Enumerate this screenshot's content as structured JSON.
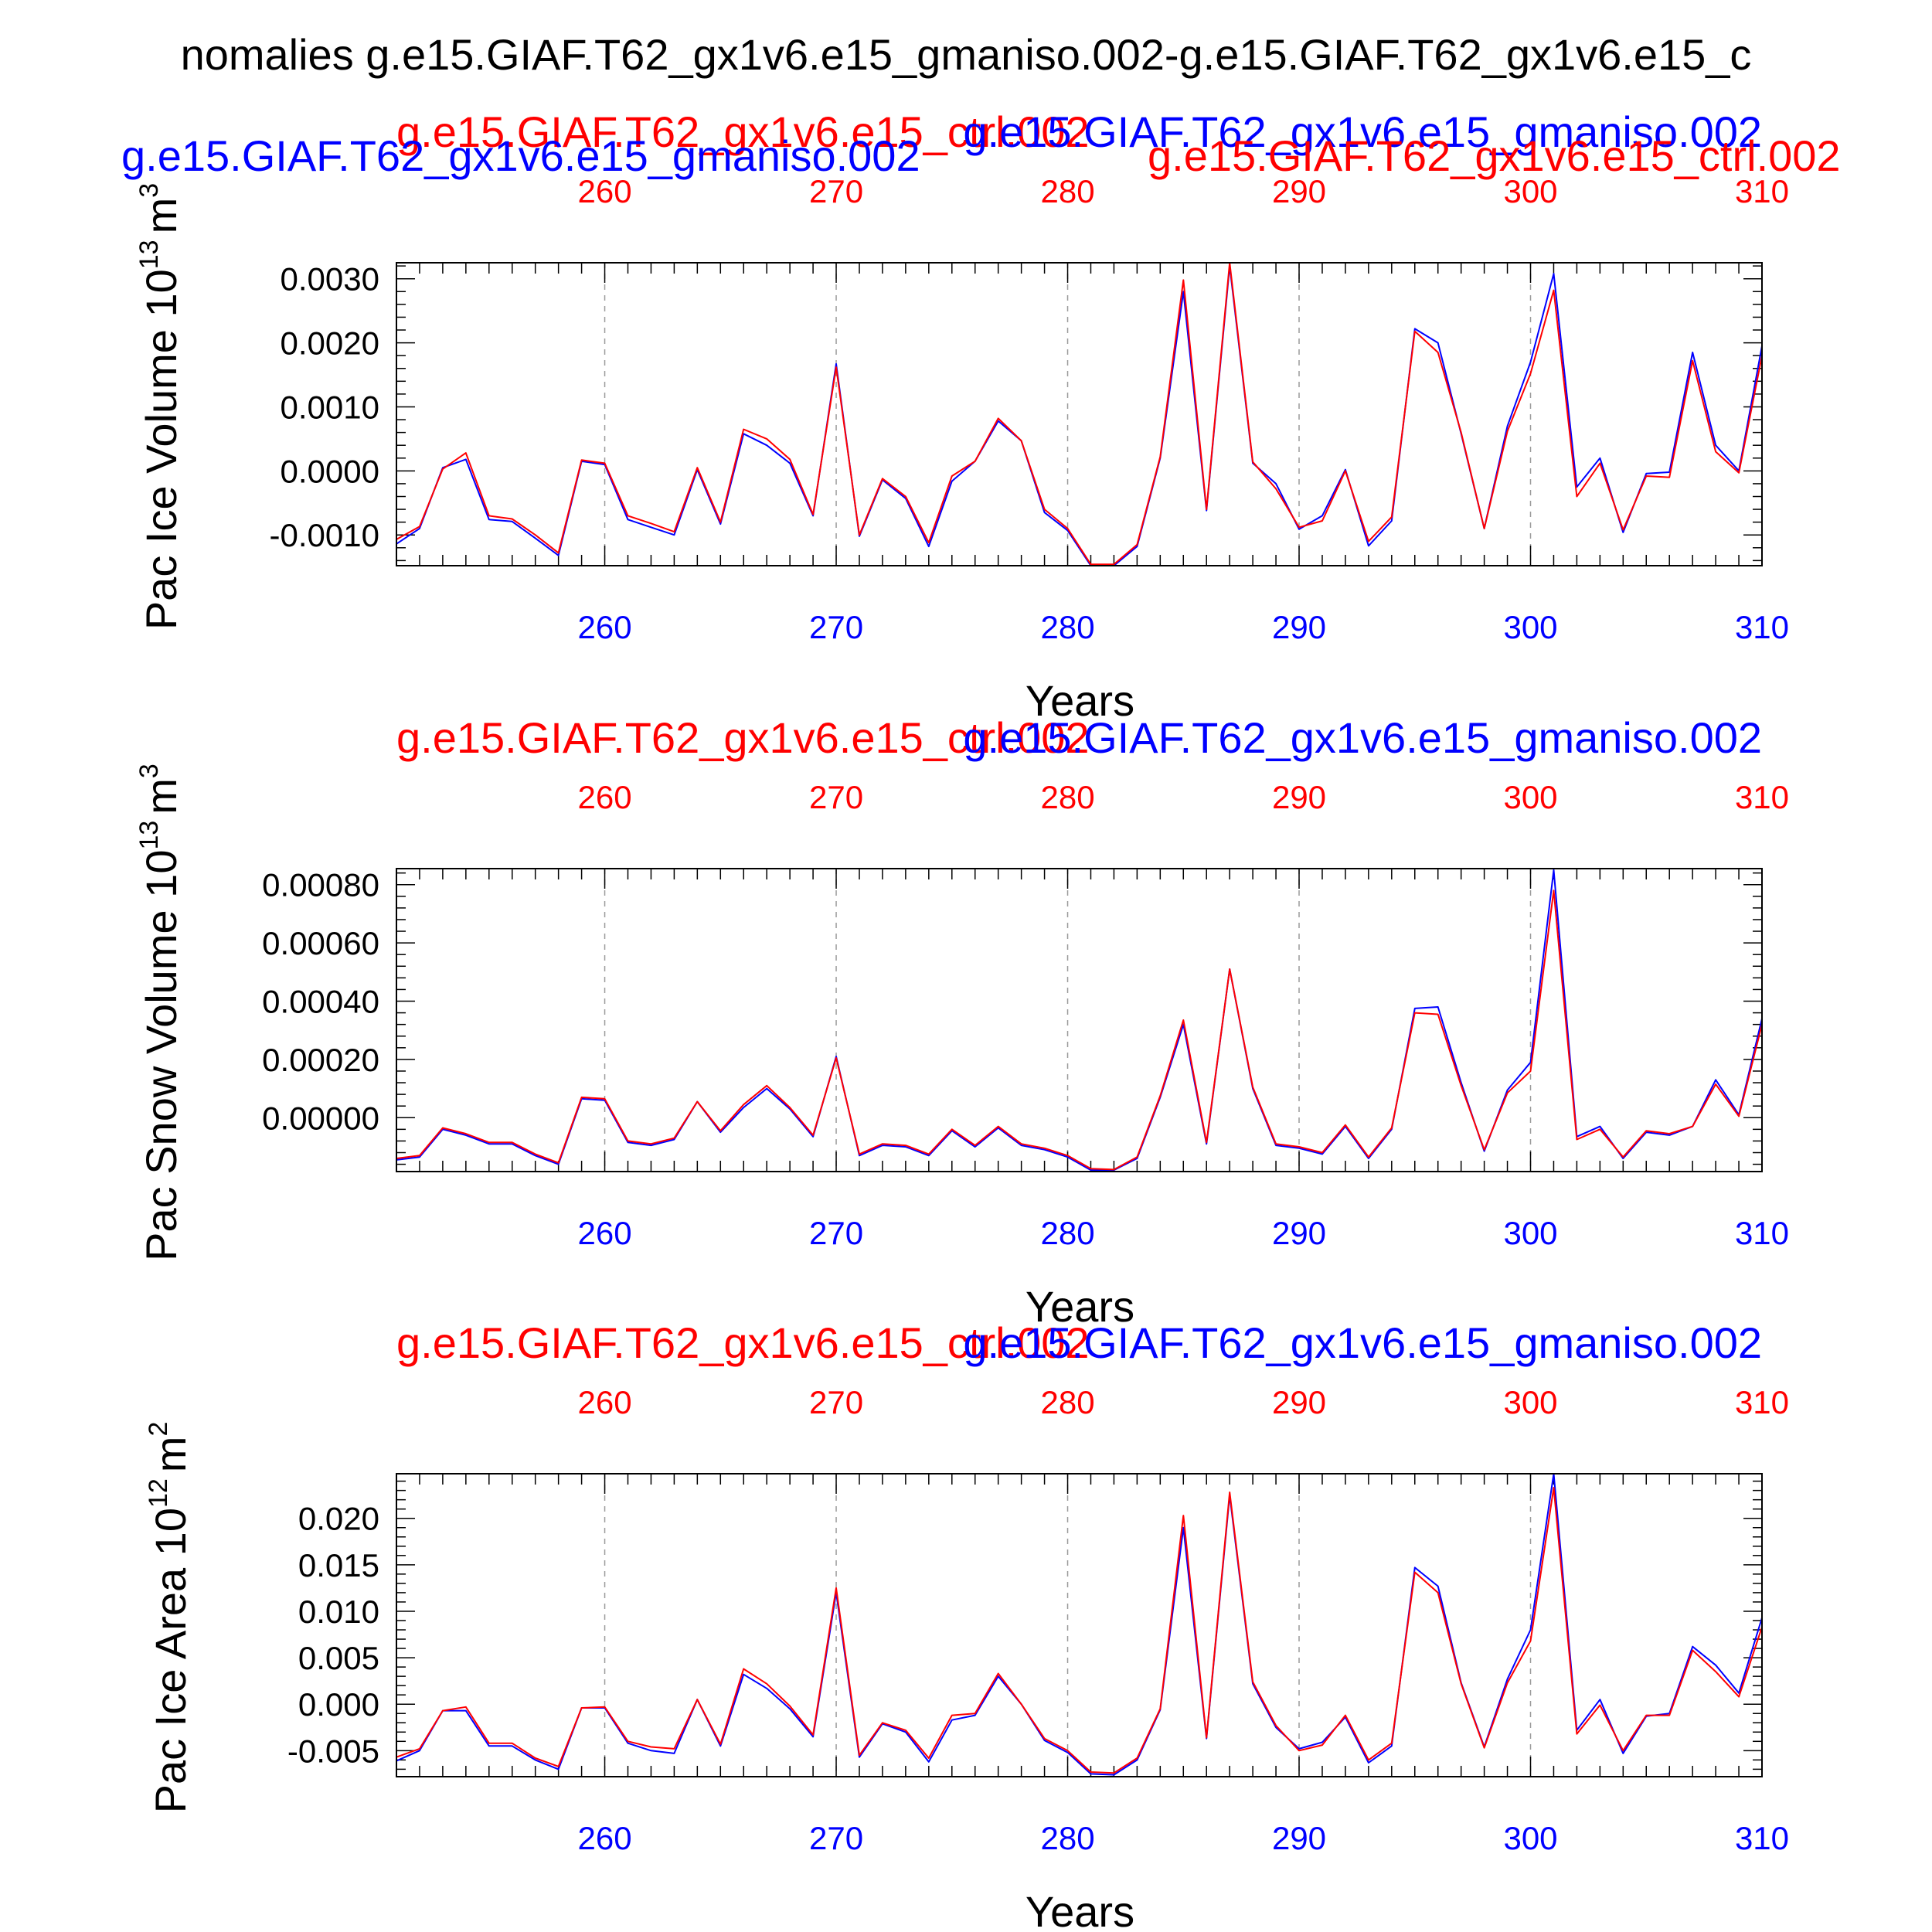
{
  "figure_title": "nomalies g.e15.GIAF.T62_gx1v6.e15_gmaniso.002-g.e15.GIAF.T62_gx1v6.e15_c",
  "colors": {
    "blue_series": "#0000ff",
    "red_series": "#ff0000",
    "axis": "#000000",
    "grid": "#9a9a9a"
  },
  "chart_data": [
    {
      "type": "line",
      "name": "ice-volume",
      "ylabel": "Pac Ice Volume 10",
      "ylabel_exp": "13",
      "ylabel_unit": "m",
      "ylabel_unit_exp": "3",
      "xlabel": "Years",
      "title_blue": "g.e15.GIAF.T62_gx1v6.e15_gmaniso.002",
      "title_red": "g.e15.GIAF.T62_gx1v6.e15_ctrl.002",
      "title_blue_top": "g.e15.GIAF.T62_gx1v6.e15_gmaniso.002",
      "title_red_top": "g.e15.GIAF.T62_gx1v6.e15_ctrl.002",
      "xlim": [
        251,
        310
      ],
      "ylim": [
        -0.00148,
        0.00325
      ],
      "xticks": [
        260,
        270,
        280,
        290,
        300,
        310
      ],
      "yticks": [
        -0.001,
        0.0,
        0.001,
        0.002,
        0.003
      ],
      "ytick_labels": [
        "-0.0010",
        "0.0000",
        "0.0010",
        "0.0020",
        "0.0030"
      ],
      "series": [
        {
          "name": "g.e15.GIAF.T62_gx1v6.e15_gmaniso.002",
          "color": "#0000ff",
          "values": [
            -0.00114,
            -0.0009,
            5e-05,
            0.00018,
            -0.00076,
            -0.00079,
            -0.00105,
            -0.00132,
            0.00015,
            0.0001,
            -0.00076,
            -0.00088,
            -0.001,
            2e-05,
            -0.00083,
            0.00058,
            0.0004,
            0.00012,
            -0.0007,
            0.00167,
            -0.00102,
            -0.00014,
            -0.00043,
            -0.00118,
            -0.00016,
            0.00015,
            0.00078,
            0.00047,
            -0.00065,
            -0.00093,
            -0.00148,
            -0.00148,
            -0.00118,
            0.0002,
            0.0028,
            -0.00062,
            0.0032,
            0.00012,
            -0.0002,
            -0.00091,
            -0.0007,
            2e-05,
            -0.00117,
            -0.00078,
            0.00222,
            0.002,
            0.00058,
            -0.0009,
            0.0007,
            0.0017,
            0.00308,
            -0.00025,
            0.0002,
            -0.00096,
            -4e-05,
            -2e-05,
            0.00185,
            0.0004,
            0.0,
            0.00195
          ]
        },
        {
          "name": "g.e15.GIAF.T62_gx1v6.e15_ctrl.002",
          "color": "#ff0000",
          "values": [
            -0.00107,
            -0.00087,
            3e-05,
            0.00028,
            -0.0007,
            -0.00075,
            -0.001,
            -0.00128,
            0.00017,
            0.00012,
            -0.0007,
            -0.00082,
            -0.00095,
            5e-05,
            -0.0008,
            0.00065,
            0.0005,
            0.00018,
            -0.00068,
            0.00162,
            -0.001,
            -0.00012,
            -0.0004,
            -0.00112,
            -8e-05,
            0.00015,
            0.00082,
            0.00047,
            -0.0006,
            -0.0009,
            -0.00146,
            -0.00146,
            -0.00115,
            0.00022,
            0.00298,
            -0.0006,
            0.00325,
            0.00014,
            -0.00028,
            -0.00088,
            -0.00078,
            0.0,
            -0.0011,
            -0.00072,
            0.00218,
            0.00185,
            0.0006,
            -0.0009,
            0.00062,
            0.00152,
            0.00282,
            -0.0004,
            0.00012,
            -0.00092,
            -8e-05,
            -0.0001,
            0.00172,
            0.0003,
            -3e-05,
            0.0018
          ]
        }
      ]
    },
    {
      "type": "line",
      "name": "snow-volume",
      "ylabel": "Pac Snow Volume 10",
      "ylabel_exp": "13",
      "ylabel_unit": "m",
      "ylabel_unit_exp": "3",
      "xlabel": "Years",
      "title_blue": "g.e15.GIAF.T62_gx1v6.e15_gmaniso.002",
      "title_red": "g.e15.GIAF.T62_gx1v6.e15_ctrl.002",
      "xlim": [
        251,
        310
      ],
      "ylim": [
        -0.000185,
        0.000855
      ],
      "xticks": [
        260,
        270,
        280,
        290,
        300,
        310
      ],
      "yticks": [
        0.0,
        0.0002,
        0.0004,
        0.0006,
        0.0008
      ],
      "ytick_labels": [
        "0.00000",
        "0.00020",
        "0.00040",
        "0.00060",
        "0.00080"
      ],
      "series": [
        {
          "name": "g.e15.GIAF.T62_gx1v6.e15_gmaniso.002",
          "color": "#0000ff",
          "values": [
            -0.000145,
            -0.000135,
            -4e-05,
            -6e-05,
            -9e-05,
            -9e-05,
            -0.00013,
            -0.00016,
            6.5e-05,
            6e-05,
            -8.5e-05,
            -9.5e-05,
            -7.5e-05,
            5.5e-05,
            -5e-05,
            3.5e-05,
            0.0001,
            3e-05,
            -6.5e-05,
            0.00021,
            -0.00013,
            -9.5e-05,
            -0.0001,
            -0.00013,
            -4.5e-05,
            -0.0001,
            -3.5e-05,
            -9.5e-05,
            -0.00011,
            -0.000135,
            -0.00018,
            -0.00018,
            -0.00014,
            7e-05,
            0.00032,
            -9e-05,
            0.00051,
            0.0001,
            -9.5e-05,
            -0.000105,
            -0.000125,
            -3e-05,
            -0.00014,
            -4e-05,
            0.000375,
            0.00038,
            0.00012,
            -0.000115,
            9.5e-05,
            0.00019,
            0.00085,
            -6.5e-05,
            -3e-05,
            -0.00014,
            -5e-05,
            -6e-05,
            -3e-05,
            0.00013,
            1e-05,
            0.00034
          ]
        },
        {
          "name": "g.e15.GIAF.T62_gx1v6.e15_ctrl.002",
          "color": "#ff0000",
          "values": [
            -0.00014,
            -0.00013,
            -3.5e-05,
            -5.5e-05,
            -8.5e-05,
            -8.5e-05,
            -0.000125,
            -0.000155,
            7e-05,
            6.5e-05,
            -8e-05,
            -9e-05,
            -7e-05,
            5.5e-05,
            -4.5e-05,
            4.5e-05,
            0.00011,
            3.5e-05,
            -6e-05,
            0.000205,
            -0.000125,
            -9e-05,
            -9.5e-05,
            -0.000125,
            -4e-05,
            -9.5e-05,
            -3e-05,
            -9e-05,
            -0.000105,
            -0.00013,
            -0.000175,
            -0.000178,
            -0.000135,
            7.5e-05,
            0.000335,
            -8.5e-05,
            0.00051,
            0.000105,
            -9e-05,
            -0.0001,
            -0.00012,
            -2.5e-05,
            -0.000135,
            -3.5e-05,
            0.00036,
            0.000355,
            0.00011,
            -0.00011,
            8.5e-05,
            0.00016,
            0.00078,
            -7.5e-05,
            -4e-05,
            -0.000135,
            -4.5e-05,
            -5.5e-05,
            -3e-05,
            0.000115,
            5e-06,
            0.00032
          ]
        }
      ]
    },
    {
      "type": "line",
      "name": "ice-area",
      "ylabel": "Pac Ice Area 10",
      "ylabel_exp": "12",
      "ylabel_unit": "m",
      "ylabel_unit_exp": "2",
      "xlabel": "Years",
      "title_blue": "g.e15.GIAF.T62_gx1v6.e15_gmaniso.002",
      "title_red": "g.e15.GIAF.T62_gx1v6.e15_ctrl.002",
      "xlim": [
        251,
        310
      ],
      "ylim": [
        -0.0078,
        0.0248
      ],
      "xticks": [
        260,
        270,
        280,
        290,
        300,
        310
      ],
      "yticks": [
        -0.005,
        0.0,
        0.005,
        0.01,
        0.015,
        0.02
      ],
      "ytick_labels": [
        "-0.005",
        "0.000",
        "0.005",
        "0.010",
        "0.015",
        "0.020"
      ],
      "series": [
        {
          "name": "g.e15.GIAF.T62_gx1v6.e15_gmaniso.002",
          "color": "#0000ff",
          "values": [
            -0.0061,
            -0.005,
            -0.0007,
            -0.0007,
            -0.0045,
            -0.0045,
            -0.006,
            -0.007,
            -0.0004,
            -0.0004,
            -0.0042,
            -0.005,
            -0.0053,
            0.0005,
            -0.0045,
            0.0032,
            0.0017,
            -0.0005,
            -0.0035,
            0.012,
            -0.0057,
            -0.0021,
            -0.003,
            -0.0062,
            -0.0017,
            -0.0012,
            0.003,
            0.0,
            -0.0039,
            -0.0052,
            -0.0075,
            -0.0076,
            -0.006,
            -0.0006,
            0.019,
            -0.0037,
            0.0225,
            0.0022,
            -0.0025,
            -0.0048,
            -0.0041,
            -0.0014,
            -0.0063,
            -0.0045,
            0.0147,
            0.0127,
            0.0023,
            -0.0046,
            0.0027,
            0.008,
            0.0248,
            -0.0028,
            0.0005,
            -0.0053,
            -0.0013,
            -0.001,
            0.0062,
            0.0042,
            0.0012,
            0.0093
          ]
        },
        {
          "name": "g.e15.GIAF.T62_gx1v6.e15_ctrl.002",
          "color": "#ff0000",
          "values": [
            -0.0057,
            -0.0048,
            -0.0007,
            -0.0003,
            -0.0042,
            -0.0042,
            -0.0058,
            -0.0067,
            -0.0004,
            -0.0003,
            -0.004,
            -0.0046,
            -0.0048,
            0.0005,
            -0.0043,
            0.0038,
            0.0022,
            -0.0002,
            -0.0033,
            0.0125,
            -0.0055,
            -0.002,
            -0.0028,
            -0.0058,
            -0.0012,
            -0.001,
            0.0033,
            0.0,
            -0.0037,
            -0.005,
            -0.0073,
            -0.0074,
            -0.0058,
            -0.0005,
            0.0203,
            -0.0036,
            0.0228,
            0.0024,
            -0.0023,
            -0.005,
            -0.0044,
            -0.0012,
            -0.006,
            -0.0042,
            0.0142,
            0.012,
            0.0022,
            -0.0047,
            0.0023,
            0.0068,
            0.0233,
            -0.0032,
            -0.0001,
            -0.005,
            -0.0012,
            -0.0012,
            0.0058,
            0.0035,
            0.0008,
            0.0083
          ]
        }
      ]
    }
  ]
}
